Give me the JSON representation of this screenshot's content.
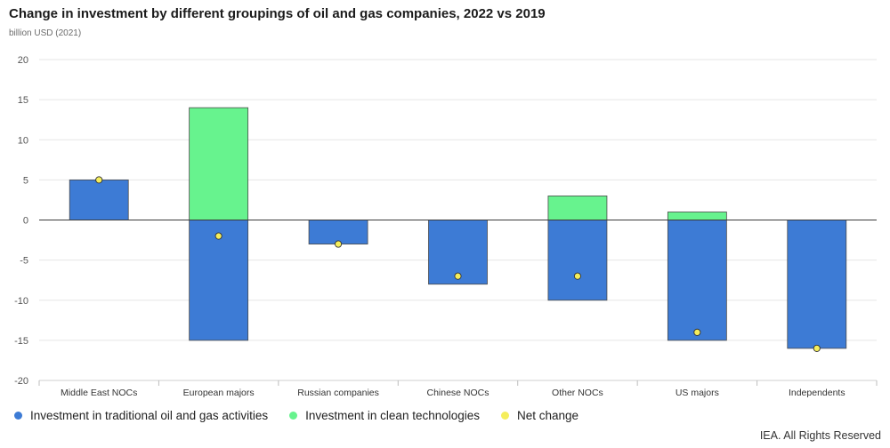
{
  "colors": {
    "traditional": "#3d7bd5",
    "clean": "#67f38e",
    "net": "#f5ee5c",
    "zero_line": "#3a3a3a",
    "grid": "#e6e6e6",
    "bar_stroke": "#4a4a4a"
  },
  "chart_data": {
    "type": "bar",
    "stacked": true,
    "title": "Change in investment by different groupings of oil and gas companies, 2022 vs 2019",
    "subtitle": "billion USD (2021)",
    "xlabel": "",
    "ylabel": "",
    "ylim": [
      -20,
      20
    ],
    "yticks": [
      20,
      15,
      10,
      5,
      0,
      -5,
      -10,
      -15,
      -20
    ],
    "grid": true,
    "legend_position": "bottom-left",
    "categories": [
      "Middle East NOCs",
      "European majors",
      "Russian companies",
      "Chinese NOCs",
      "Other NOCs",
      "US majors",
      "Independents"
    ],
    "series": [
      {
        "name": "Investment in traditional oil and gas activities",
        "type": "bar",
        "color": "#3d7bd5",
        "values": [
          5,
          -15,
          -3,
          -8,
          -10,
          -15,
          -16
        ]
      },
      {
        "name": "Investment in clean technologies",
        "type": "bar",
        "color": "#67f38e",
        "values": [
          0,
          14,
          0,
          0,
          3,
          1,
          0
        ]
      },
      {
        "name": "Net change",
        "type": "scatter",
        "color": "#f5ee5c",
        "values": [
          5,
          -2,
          -3,
          -7,
          -7,
          -14,
          -16
        ]
      }
    ]
  },
  "credit": "IEA. All Rights Reserved"
}
